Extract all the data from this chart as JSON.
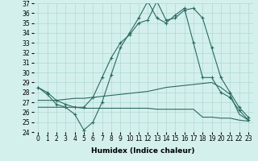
{
  "xlabel": "Humidex (Indice chaleur)",
  "hours": [
    0,
    1,
    2,
    3,
    4,
    5,
    6,
    7,
    8,
    9,
    10,
    11,
    12,
    13,
    14,
    15,
    16,
    17,
    18,
    19,
    20,
    21,
    22,
    23
  ],
  "line1": [
    28.5,
    28.0,
    27.2,
    26.8,
    26.5,
    26.5,
    27.5,
    29.5,
    31.5,
    33.0,
    33.8,
    35.0,
    35.3,
    37.2,
    35.3,
    35.5,
    36.3,
    36.5,
    35.5,
    32.5,
    29.5,
    28.0,
    26.5,
    25.5
  ],
  "line2": [
    28.5,
    27.8,
    26.8,
    26.5,
    25.8,
    24.2,
    25.0,
    27.0,
    29.8,
    32.5,
    34.0,
    35.5,
    37.2,
    35.5,
    35.0,
    35.8,
    36.5,
    33.0,
    29.5,
    29.5,
    28.0,
    27.5,
    26.2,
    25.2
  ],
  "line3": [
    27.2,
    27.2,
    27.2,
    27.3,
    27.4,
    27.4,
    27.5,
    27.6,
    27.7,
    27.8,
    27.9,
    28.0,
    28.1,
    28.3,
    28.5,
    28.6,
    28.7,
    28.8,
    28.9,
    29.0,
    28.5,
    27.8,
    25.8,
    25.2
  ],
  "line4": [
    26.5,
    26.5,
    26.5,
    26.5,
    26.5,
    26.4,
    26.4,
    26.4,
    26.4,
    26.4,
    26.4,
    26.4,
    26.4,
    26.3,
    26.3,
    26.3,
    26.3,
    26.3,
    25.5,
    25.5,
    25.4,
    25.4,
    25.2,
    25.1
  ],
  "line_color": "#2a6b62",
  "bg_color": "#d4f0ed",
  "grid_color": "#b0d8d4",
  "ylim": [
    24,
    37
  ],
  "yticks": [
    24,
    25,
    26,
    27,
    28,
    29,
    30,
    31,
    32,
    33,
    34,
    35,
    36,
    37
  ],
  "xticks": [
    0,
    1,
    2,
    3,
    4,
    5,
    6,
    7,
    8,
    9,
    10,
    11,
    12,
    13,
    14,
    15,
    16,
    17,
    18,
    19,
    20,
    21,
    22,
    23
  ],
  "axis_fontsize": 6.5,
  "tick_fontsize": 5.5
}
